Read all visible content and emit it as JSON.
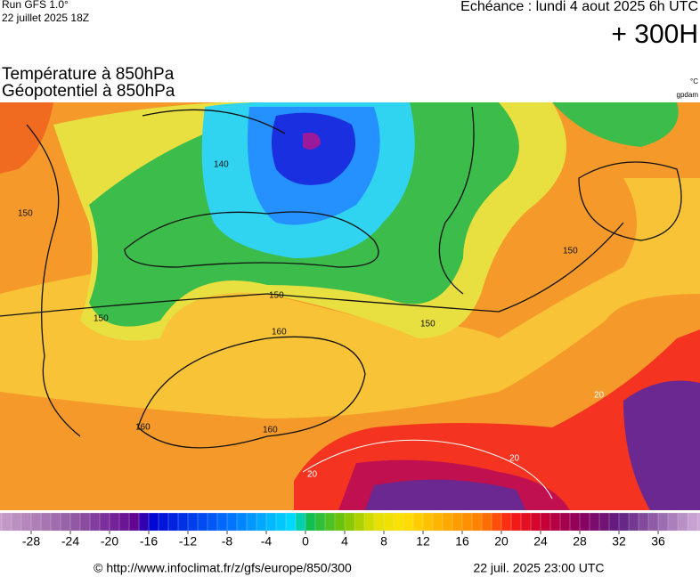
{
  "header": {
    "run": "Run GFS 1.0°",
    "run_date": "22 juillet 2025 18Z",
    "valid": "Echéance : lundi 4 aout 2025 6h UTC",
    "lead": "+ 300H"
  },
  "titles": [
    "Température à 850hPa",
    "Géopotentiel à 850hPa"
  ],
  "units": [
    "°C",
    "gpdam"
  ],
  "map": {
    "contour_labels": [
      150,
      140,
      150,
      150,
      160,
      160,
      160,
      150,
      150,
      20,
      20,
      20
    ]
  },
  "colorbar": {
    "ticks": [
      -28,
      -24,
      -20,
      -16,
      -12,
      -8,
      -4,
      0,
      4,
      8,
      12,
      16,
      20,
      24,
      28,
      32,
      36
    ]
  },
  "footer": {
    "source": "© http://www.infoclimat.fr/z/gfs/europe/850/300",
    "generated": "22 juil. 2025 23:00 UTC"
  }
}
